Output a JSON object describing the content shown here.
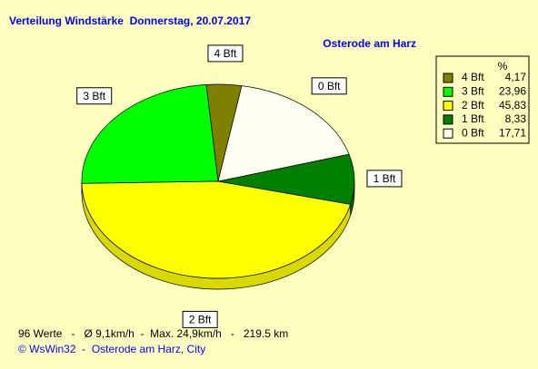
{
  "chart_data": {
    "type": "pie",
    "title": "Verteilung Windstärke  Donnerstag, 20.07.2017",
    "subtitle": "Osterode am Harz",
    "legend_header": "%",
    "categories": [
      "4 Bft",
      "3 Bft",
      "2 Bft",
      "1 Bft",
      "0 Bft"
    ],
    "values": [
      4.17,
      23.96,
      45.83,
      8.33,
      17.71
    ],
    "value_labels": [
      "4,17",
      "23,96",
      "45,83",
      "8,33",
      "17,71"
    ],
    "colors": [
      "#808000",
      "#00ff00",
      "#ffff00",
      "#008000",
      "#fffff2"
    ],
    "legend": "top-right",
    "footer": "96 Werte   -   Ø 9,1km/h  -  Max. 24,9km/h   -   219.5 km",
    "credit": "© WsWin32  -  Osterode am Harz, City"
  }
}
